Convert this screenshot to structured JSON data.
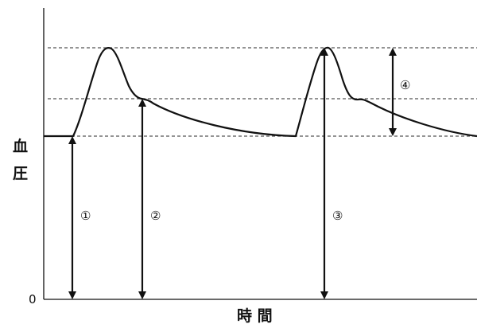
{
  "axes": {
    "y_label_line1": "血",
    "y_label_line2": "圧",
    "x_label": "時 間",
    "zero_label": "0"
  },
  "markers": [
    {
      "id": "marker-1",
      "symbol": "①"
    },
    {
      "id": "marker-2",
      "symbol": "②"
    },
    {
      "id": "marker-3",
      "symbol": "③"
    },
    {
      "id": "marker-4",
      "symbol": "④"
    }
  ],
  "colors": {
    "ink": "#111111",
    "guide": "#555555"
  }
}
